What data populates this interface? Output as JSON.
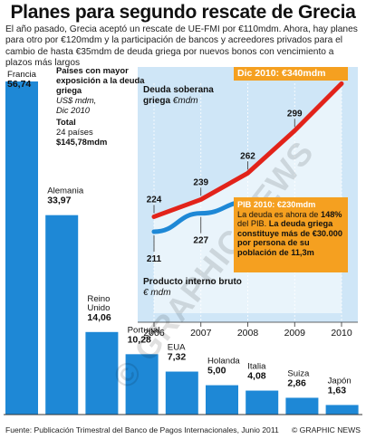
{
  "title": "Planes para segundo rescate de Grecia",
  "subtitle": "El año pasado, Grecia aceptó un rescate de UE-FMI por €110mdm. Ahora, hay planes para otro por €120mdm y la participación de bancos y acreedores privados para el cambio de hasta €35mdm de deuda griega por nuevos bonos con vencimiento a plazos más largos",
  "legend": {
    "heading": "Países con mayor exposición a la deuda griega",
    "unit": "US$ mdm,",
    "date": "Dic 2010",
    "total_label": "Total",
    "total_count": "24 países",
    "total_value": "$145,78mdm"
  },
  "inset": {
    "debt_label": "Deuda soberana griega",
    "debt_unit": "€mdm",
    "gdp_label": "Producto interno bruto",
    "gdp_unit": "€ mdm",
    "top_badge": "Dic 2010: €340mdm",
    "callout_head": "PIB 2010: €230mdm",
    "callout_body1": "La deuda es ahora de",
    "callout_bold1": "148%",
    "callout_body2": "del PIB.",
    "callout_bold2": "La deuda griega constituye más de €30.000 por persona de su población de 11,3m"
  },
  "source": "Fuente: Publicación Trimestral del Banco de Pagos Internacionales, Junio 2011",
  "credit": "© GRAPHIC NEWS",
  "watermark": "© GRAPHIC NEWS",
  "colors": {
    "bar": "#1e88d6",
    "debt": "#e2231a",
    "gdp": "#1e88d6",
    "panel": "#cfe6f7",
    "accent": "#f5a020"
  },
  "chart_data": [
    {
      "type": "bar",
      "categories": [
        "Francia",
        "Alemania",
        "Reino Unido",
        "Portugal",
        "EUA",
        "Holanda",
        "Italia",
        "Suiza",
        "Japón"
      ],
      "values": [
        56.74,
        33.97,
        14.06,
        10.28,
        7.32,
        5.0,
        4.08,
        2.86,
        1.63
      ],
      "value_labels": [
        "56,74",
        "33,97",
        "14,06",
        "10,28",
        "7,32",
        "5,00",
        "4,08",
        "2,86",
        "1,63"
      ],
      "unit": "US$ mdm"
    },
    {
      "type": "line",
      "x": [
        "2006",
        "2007",
        "2008",
        "2009",
        "2010"
      ],
      "series": [
        {
          "name": "Deuda soberana griega",
          "values": [
            224,
            239,
            262,
            299,
            340
          ],
          "labels": [
            "224",
            "239",
            "262",
            "299",
            ""
          ]
        },
        {
          "name": "Producto interno bruto",
          "values": [
            211,
            227,
            237,
            235,
            230
          ],
          "labels": [
            "211",
            "227",
            "237",
            "235",
            ""
          ]
        }
      ],
      "ylim": [
        140,
        345
      ]
    }
  ]
}
